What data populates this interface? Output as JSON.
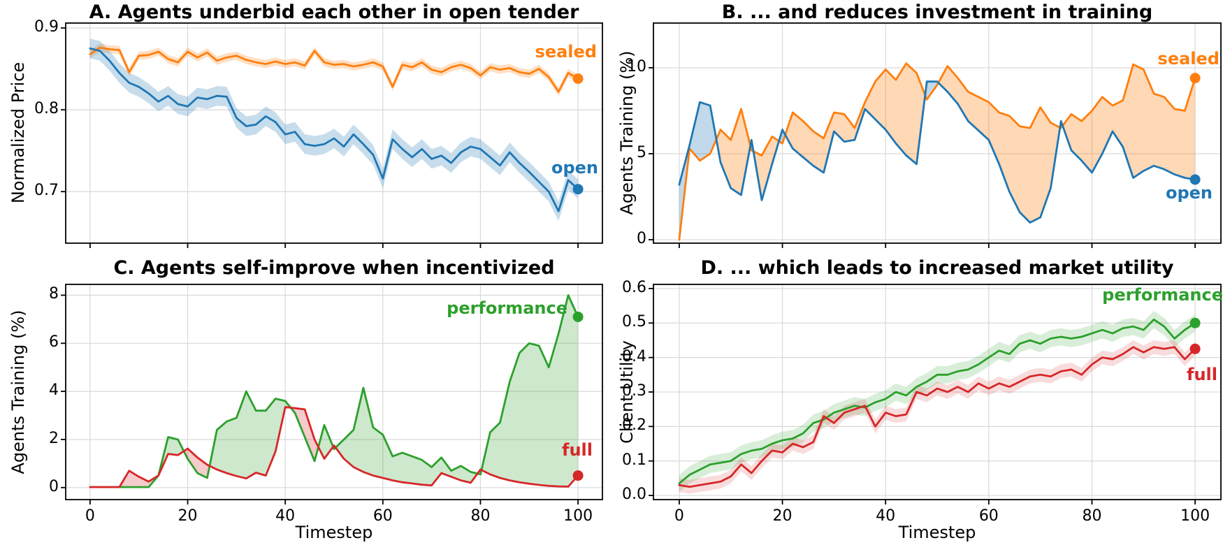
{
  "figure": {
    "background": "#ffffff",
    "grid_color": "#d9d9d9",
    "spine_color": "#000000"
  },
  "chart_data": [
    {
      "id": "A",
      "type": "line",
      "title": "A. Agents underbid each other in open tender",
      "ylabel": "Normalized Price",
      "xlabel": "",
      "xlim": [
        -5,
        105
      ],
      "ylim": [
        0.637,
        0.906
      ],
      "xticks": [
        0,
        20,
        40,
        60,
        80,
        100
      ],
      "xticklabels": [],
      "yticks": [
        0.7,
        0.8,
        0.9
      ],
      "yticklabels": [
        "0.7",
        "0.8",
        "0.9"
      ],
      "grid": true,
      "legend_position": "end-of-line-labels",
      "x": [
        0,
        2,
        4,
        6,
        8,
        10,
        12,
        14,
        16,
        18,
        20,
        22,
        24,
        26,
        28,
        30,
        32,
        34,
        36,
        38,
        40,
        42,
        44,
        46,
        48,
        50,
        52,
        54,
        56,
        58,
        60,
        62,
        64,
        66,
        68,
        70,
        72,
        74,
        76,
        78,
        80,
        82,
        84,
        86,
        88,
        90,
        92,
        94,
        96,
        98,
        100
      ],
      "series": [
        {
          "name": "sealed",
          "color": "#ff7f0e",
          "band": 0.005,
          "band_color": "rgba(255,127,14,0.25)",
          "end_dot": true,
          "values": [
            0.868,
            0.876,
            0.874,
            0.873,
            0.846,
            0.866,
            0.867,
            0.871,
            0.862,
            0.858,
            0.871,
            0.864,
            0.87,
            0.86,
            0.864,
            0.866,
            0.861,
            0.858,
            0.856,
            0.859,
            0.856,
            0.858,
            0.854,
            0.872,
            0.858,
            0.855,
            0.856,
            0.853,
            0.855,
            0.858,
            0.853,
            0.828,
            0.855,
            0.852,
            0.858,
            0.849,
            0.846,
            0.852,
            0.855,
            0.851,
            0.842,
            0.852,
            0.849,
            0.851,
            0.846,
            0.844,
            0.85,
            0.84,
            0.822,
            0.845,
            0.838
          ]
        },
        {
          "name": "open",
          "color": "#1f77b4",
          "band": 0.012,
          "band_color": "rgba(31,119,180,0.25)",
          "end_dot": true,
          "values": [
            0.875,
            0.872,
            0.86,
            0.845,
            0.833,
            0.828,
            0.82,
            0.81,
            0.817,
            0.807,
            0.804,
            0.815,
            0.813,
            0.817,
            0.816,
            0.79,
            0.78,
            0.782,
            0.792,
            0.785,
            0.77,
            0.773,
            0.758,
            0.756,
            0.758,
            0.765,
            0.755,
            0.77,
            0.758,
            0.745,
            0.716,
            0.764,
            0.752,
            0.742,
            0.752,
            0.74,
            0.744,
            0.735,
            0.748,
            0.755,
            0.752,
            0.742,
            0.732,
            0.748,
            0.735,
            0.724,
            0.712,
            0.7,
            0.676,
            0.714,
            0.703
          ]
        }
      ]
    },
    {
      "id": "B",
      "type": "line",
      "title": "B. ... and reduces investment in training",
      "ylabel": "Agents Training (%)",
      "xlabel": "",
      "xlim": [
        -5,
        105
      ],
      "ylim": [
        -0.2,
        12.6
      ],
      "xticks": [
        0,
        20,
        40,
        60,
        80,
        100
      ],
      "xticklabels": [],
      "yticks": [
        0,
        5,
        10
      ],
      "yticklabels": [
        "0",
        "5",
        "10"
      ],
      "grid": true,
      "fill_between": {
        "a": 0,
        "b": 1,
        "color_a_above": "rgba(255,127,14,0.3)",
        "color_b_above": "rgba(31,119,180,0.28)"
      },
      "x": [
        0,
        2,
        4,
        6,
        8,
        10,
        12,
        14,
        16,
        18,
        20,
        22,
        24,
        26,
        28,
        30,
        32,
        34,
        36,
        38,
        40,
        42,
        44,
        46,
        48,
        50,
        52,
        54,
        56,
        58,
        60,
        62,
        64,
        66,
        68,
        70,
        72,
        74,
        76,
        78,
        80,
        82,
        84,
        86,
        88,
        90,
        92,
        94,
        96,
        98,
        100
      ],
      "series": [
        {
          "name": "sealed",
          "color": "#ff7f0e",
          "band": 0,
          "end_dot": true,
          "values": [
            0.0,
            5.3,
            4.6,
            5.0,
            6.4,
            5.8,
            7.6,
            5.2,
            4.9,
            6.0,
            5.6,
            7.4,
            6.9,
            6.3,
            5.9,
            7.4,
            7.3,
            6.5,
            8.0,
            9.2,
            9.9,
            9.3,
            10.25,
            9.7,
            8.15,
            9.0,
            10.1,
            9.4,
            8.6,
            8.3,
            8.0,
            7.4,
            7.2,
            6.6,
            6.5,
            7.7,
            6.8,
            6.5,
            7.3,
            6.9,
            7.5,
            8.3,
            7.8,
            8.1,
            10.2,
            9.9,
            8.5,
            8.3,
            7.6,
            7.5,
            9.4
          ]
        },
        {
          "name": "open",
          "color": "#1f77b4",
          "band": 0,
          "end_dot": true,
          "values": [
            3.2,
            5.5,
            8.0,
            7.8,
            4.5,
            3.0,
            2.6,
            5.8,
            2.3,
            4.4,
            6.4,
            5.3,
            4.8,
            4.3,
            3.9,
            6.3,
            5.7,
            5.8,
            7.6,
            7.0,
            6.4,
            5.6,
            4.9,
            4.4,
            9.2,
            9.2,
            8.6,
            7.9,
            6.9,
            6.35,
            5.8,
            4.4,
            2.8,
            1.6,
            1.0,
            1.3,
            3.0,
            6.9,
            5.2,
            4.6,
            3.9,
            5.0,
            6.3,
            5.4,
            3.6,
            4.0,
            4.3,
            4.1,
            3.8,
            3.6,
            3.5
          ]
        }
      ]
    },
    {
      "id": "C",
      "type": "line",
      "title": "C. Agents self-improve when incentivized",
      "ylabel": "Agents Training (%)",
      "xlabel": "Timestep",
      "xlim": [
        -5,
        105
      ],
      "ylim": [
        -0.5,
        8.45
      ],
      "xticks": [
        0,
        20,
        40,
        60,
        80,
        100
      ],
      "xticklabels": [
        "0",
        "20",
        "40",
        "60",
        "80",
        "100"
      ],
      "yticks": [
        0,
        2,
        4,
        6,
        8
      ],
      "yticklabels": [
        "0",
        "2",
        "4",
        "6",
        "8"
      ],
      "grid": true,
      "fill_between": {
        "a": 0,
        "b": 1,
        "color_a_above": "rgba(44,160,44,0.24)",
        "color_b_above": "rgba(214,39,40,0.24)"
      },
      "x": [
        0,
        2,
        4,
        6,
        8,
        10,
        12,
        14,
        16,
        18,
        20,
        22,
        24,
        26,
        28,
        30,
        32,
        34,
        36,
        38,
        40,
        42,
        44,
        46,
        48,
        50,
        52,
        54,
        56,
        58,
        60,
        62,
        64,
        66,
        68,
        70,
        72,
        74,
        76,
        78,
        80,
        82,
        84,
        86,
        88,
        90,
        92,
        94,
        96,
        98,
        100
      ],
      "series": [
        {
          "name": "performance",
          "color": "#2ca02c",
          "band": 0,
          "end_dot": true,
          "values": [
            0.02,
            0.02,
            0.02,
            0.02,
            0.02,
            0.02,
            0.02,
            0.5,
            2.1,
            2.0,
            1.2,
            0.6,
            0.4,
            2.4,
            2.75,
            2.9,
            4.0,
            3.2,
            3.2,
            3.7,
            3.6,
            3.1,
            2.1,
            1.1,
            2.6,
            1.6,
            2.0,
            2.4,
            4.15,
            2.5,
            2.2,
            1.3,
            1.45,
            1.3,
            1.15,
            0.85,
            1.25,
            0.7,
            0.9,
            0.65,
            0.55,
            2.3,
            2.7,
            4.4,
            5.6,
            6.0,
            5.9,
            5.0,
            6.4,
            8.0,
            7.1
          ]
        },
        {
          "name": "full",
          "color": "#d62728",
          "band": 0,
          "end_dot": true,
          "values": [
            0.02,
            0.02,
            0.02,
            0.02,
            0.7,
            0.45,
            0.25,
            0.5,
            1.4,
            1.35,
            1.62,
            1.25,
            0.95,
            0.75,
            0.6,
            0.48,
            0.38,
            0.62,
            0.5,
            1.5,
            3.35,
            3.3,
            3.25,
            2.0,
            1.2,
            1.75,
            1.2,
            0.85,
            0.65,
            0.5,
            0.4,
            0.3,
            0.22,
            0.17,
            0.12,
            0.09,
            0.6,
            0.45,
            0.3,
            0.2,
            0.75,
            0.55,
            0.4,
            0.3,
            0.22,
            0.16,
            0.11,
            0.07,
            0.05,
            0.04,
            0.5
          ]
        }
      ]
    },
    {
      "id": "D",
      "type": "line",
      "title": "D. ... which leads to increased market utility",
      "ylabel": "Client Utility",
      "xlabel": "Timestep",
      "xlim": [
        -5,
        105
      ],
      "ylim": [
        -0.012,
        0.612
      ],
      "xticks": [
        0,
        20,
        40,
        60,
        80,
        100
      ],
      "xticklabels": [
        "0",
        "20",
        "40",
        "60",
        "80",
        "100"
      ],
      "yticks": [
        0,
        0.1,
        0.2,
        0.3,
        0.4,
        0.5,
        0.6
      ],
      "yticklabels": [
        "0.0",
        "0.1",
        "0.2",
        "0.3",
        "0.4",
        "0.5",
        "0.6"
      ],
      "grid": true,
      "x": [
        0,
        2,
        4,
        6,
        8,
        10,
        12,
        14,
        16,
        18,
        20,
        22,
        24,
        26,
        28,
        30,
        32,
        34,
        36,
        38,
        40,
        42,
        44,
        46,
        48,
        50,
        52,
        54,
        56,
        58,
        60,
        62,
        64,
        66,
        68,
        70,
        72,
        74,
        76,
        78,
        80,
        82,
        84,
        86,
        88,
        90,
        92,
        94,
        96,
        98,
        100
      ],
      "series": [
        {
          "name": "performance",
          "color": "#2ca02c",
          "band": 0.025,
          "band_color": "rgba(44,160,44,0.18)",
          "end_dot": true,
          "values": [
            0.035,
            0.06,
            0.075,
            0.09,
            0.095,
            0.1,
            0.12,
            0.13,
            0.135,
            0.15,
            0.16,
            0.165,
            0.18,
            0.21,
            0.22,
            0.24,
            0.25,
            0.26,
            0.255,
            0.27,
            0.28,
            0.3,
            0.29,
            0.315,
            0.33,
            0.35,
            0.35,
            0.36,
            0.365,
            0.38,
            0.4,
            0.42,
            0.41,
            0.44,
            0.45,
            0.44,
            0.455,
            0.46,
            0.455,
            0.46,
            0.47,
            0.48,
            0.47,
            0.485,
            0.49,
            0.48,
            0.51,
            0.49,
            0.455,
            0.48,
            0.5
          ]
        },
        {
          "name": "full",
          "color": "#d62728",
          "band": 0.02,
          "band_color": "rgba(214,39,40,0.16)",
          "end_dot": true,
          "values": [
            0.03,
            0.025,
            0.03,
            0.035,
            0.04,
            0.055,
            0.09,
            0.065,
            0.1,
            0.13,
            0.125,
            0.15,
            0.14,
            0.155,
            0.23,
            0.21,
            0.24,
            0.25,
            0.26,
            0.2,
            0.24,
            0.23,
            0.235,
            0.3,
            0.29,
            0.31,
            0.3,
            0.315,
            0.3,
            0.325,
            0.31,
            0.325,
            0.315,
            0.33,
            0.345,
            0.35,
            0.345,
            0.36,
            0.365,
            0.35,
            0.38,
            0.4,
            0.395,
            0.41,
            0.43,
            0.415,
            0.43,
            0.425,
            0.43,
            0.395,
            0.425
          ]
        }
      ]
    }
  ]
}
